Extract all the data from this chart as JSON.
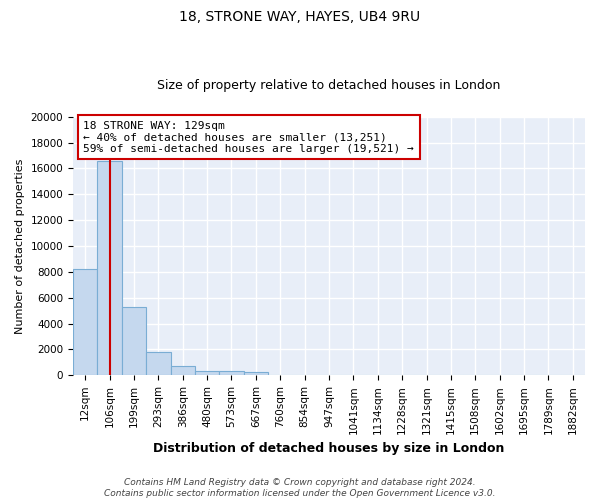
{
  "title1": "18, STRONE WAY, HAYES, UB4 9RU",
  "title2": "Size of property relative to detached houses in London",
  "xlabel": "Distribution of detached houses by size in London",
  "ylabel": "Number of detached properties",
  "categories": [
    "12sqm",
    "106sqm",
    "199sqm",
    "293sqm",
    "386sqm",
    "480sqm",
    "573sqm",
    "667sqm",
    "760sqm",
    "854sqm",
    "947sqm",
    "1041sqm",
    "1134sqm",
    "1228sqm",
    "1321sqm",
    "1415sqm",
    "1508sqm",
    "1602sqm",
    "1695sqm",
    "1789sqm",
    "1882sqm"
  ],
  "values": [
    8200,
    16600,
    5300,
    1800,
    750,
    300,
    300,
    280,
    0,
    0,
    0,
    0,
    0,
    0,
    0,
    0,
    0,
    0,
    0,
    0,
    0
  ],
  "bar_color": "#c5d8ee",
  "bar_edge_color": "#7aadd4",
  "red_line_x": 1.0,
  "annotation_title": "18 STRONE WAY: 129sqm",
  "annotation_line1": "← 40% of detached houses are smaller (13,251)",
  "annotation_line2": "59% of semi-detached houses are larger (19,521) →",
  "footer1": "Contains HM Land Registry data © Crown copyright and database right 2024.",
  "footer2": "Contains public sector information licensed under the Open Government Licence v3.0.",
  "ylim": [
    0,
    20000
  ],
  "yticks": [
    0,
    2000,
    4000,
    6000,
    8000,
    10000,
    12000,
    14000,
    16000,
    18000,
    20000
  ],
  "fig_background": "#ffffff",
  "plot_background": "#e8eef8",
  "grid_color": "#ffffff",
  "title1_fontsize": 10,
  "title2_fontsize": 9,
  "annotation_box_color": "#ffffff",
  "annotation_box_edge": "#cc0000",
  "xlabel_fontsize": 9,
  "ylabel_fontsize": 8,
  "tick_fontsize": 7.5,
  "footer_fontsize": 6.5
}
